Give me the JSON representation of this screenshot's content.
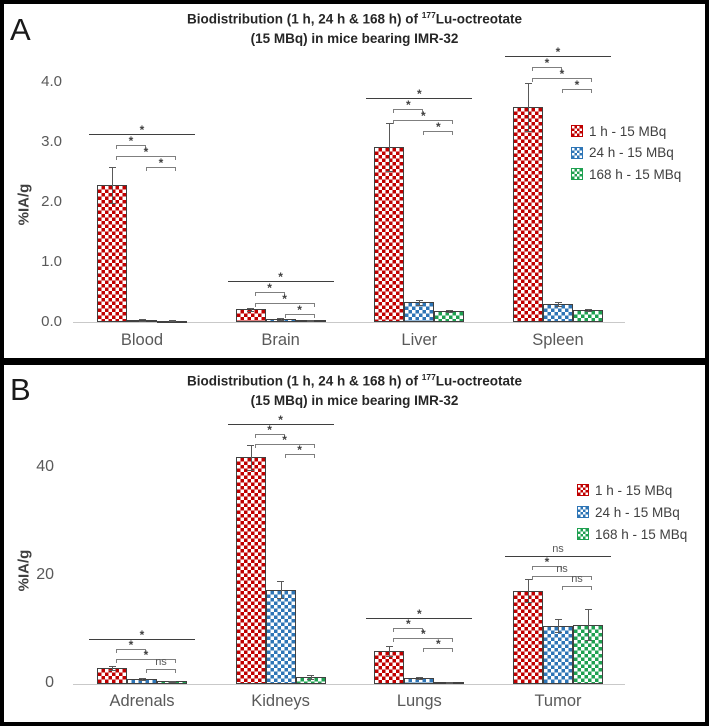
{
  "figure": {
    "panel_labels": [
      "A",
      "B"
    ],
    "series_colors": {
      "red": "#C00000",
      "blue": "#2E75B6",
      "green": "#1EA050"
    }
  },
  "chart_data": [
    {
      "type": "bar",
      "panel_label": "A",
      "title": "Biodistribution (1 h, 24 h & 168 h) of 177Lu-octreotate (15 MBq) in mice bearing IMR-32",
      "title_parts": {
        "pre": "Biodistribution (1 h, 24 h & 168 h) of ",
        "sup": "177",
        "post": "Lu-octreotate",
        "line2": "(15 MBq) in mice bearing IMR-32"
      },
      "xlabel": "",
      "ylabel": "%IA/g",
      "ylim": [
        0,
        4.5
      ],
      "grid": false,
      "legend_position": "right",
      "yticks": [
        {
          "value": 0.0,
          "label": "0.0"
        },
        {
          "value": 1.0,
          "label": "1.0"
        },
        {
          "value": 2.0,
          "label": "2.0"
        },
        {
          "value": 3.0,
          "label": "3.0"
        },
        {
          "value": 4.0,
          "label": "4.0"
        }
      ],
      "categories": [
        "Blood",
        "Brain",
        "Liver",
        "Spleen"
      ],
      "series": [
        {
          "name": "1 h - 15 MBq",
          "short": "1h",
          "color": "#C00000",
          "pattern": "checker",
          "values": [
            2.28,
            0.21,
            2.92,
            3.58
          ],
          "errors": [
            0.3,
            0.03,
            0.4,
            0.4
          ]
        },
        {
          "name": "24 h - 15 MBq",
          "short": "24h",
          "color": "#2E75B6",
          "pattern": "checker",
          "values": [
            0.04,
            0.05,
            0.33,
            0.3
          ],
          "errors": [
            0.015,
            0.015,
            0.04,
            0.03
          ]
        },
        {
          "name": "168 h - 15 MBq",
          "short": "168h",
          "color": "#1EA050",
          "pattern": "checker",
          "values": [
            0.02,
            0.03,
            0.18,
            0.2
          ],
          "errors": [
            0.01,
            0.01,
            0.02,
            0.02
          ]
        }
      ],
      "legend": {
        "items": [
          "1 h - 15 MBq",
          "24 h - 15 MBq",
          "168 h - 15 MBq"
        ]
      },
      "significance": [
        {
          "category": "Blood",
          "top_value": 3.13,
          "comparisons": [
            {
              "span": "group",
              "label": "*"
            },
            {
              "span": [
                0,
                1
              ],
              "label": "*"
            },
            {
              "span": [
                0,
                2
              ],
              "label": "*"
            },
            {
              "span": [
                1,
                2
              ],
              "label": "*"
            }
          ]
        },
        {
          "category": "Brain",
          "top_value": 0.68,
          "comparisons": [
            {
              "span": "group",
              "label": "*"
            },
            {
              "span": [
                0,
                1
              ],
              "label": "*"
            },
            {
              "span": [
                0,
                2
              ],
              "label": "*"
            },
            {
              "span": [
                1,
                2
              ],
              "label": "*"
            }
          ]
        },
        {
          "category": "Liver",
          "top_value": 3.73,
          "comparisons": [
            {
              "span": "group",
              "label": "*"
            },
            {
              "span": [
                0,
                1
              ],
              "label": "*"
            },
            {
              "span": [
                0,
                2
              ],
              "label": "*"
            },
            {
              "span": [
                1,
                2
              ],
              "label": "*"
            }
          ]
        },
        {
          "category": "Spleen",
          "top_value": 4.43,
          "comparisons": [
            {
              "span": "group",
              "label": "*"
            },
            {
              "span": [
                0,
                1
              ],
              "label": "*"
            },
            {
              "span": [
                0,
                2
              ],
              "label": "*"
            },
            {
              "span": [
                1,
                2
              ],
              "label": "*"
            }
          ]
        }
      ]
    },
    {
      "type": "bar",
      "panel_label": "B",
      "title": "Biodistribution (1 h, 24 h & 168 h) of 177Lu-octreotate (15 MBq) in mice bearing IMR-32",
      "title_parts": {
        "pre": "Biodistribution (1 h, 24 h & 168 h) of ",
        "sup": "177",
        "post": "Lu-octreotate",
        "line2": "(15 MBq) in mice bearing IMR-32"
      },
      "xlabel": "",
      "ylabel": "%IA/g",
      "ylim": [
        0,
        52
      ],
      "grid": false,
      "legend_position": "right",
      "yticks": [
        {
          "value": 0,
          "label": "0"
        },
        {
          "value": 20,
          "label": "20"
        },
        {
          "value": 40,
          "label": "40"
        }
      ],
      "categories": [
        "Adrenals",
        "Kidneys",
        "Lungs",
        "Tumor"
      ],
      "series": [
        {
          "name": "1 h - 15 MBq",
          "short": "1h",
          "color": "#C00000",
          "pattern": "checker",
          "values": [
            3.0,
            42.0,
            6.1,
            17.3
          ],
          "errors": [
            0.4,
            2.3,
            0.9,
            2.2
          ]
        },
        {
          "name": "24 h - 15 MBq",
          "short": "24h",
          "color": "#2E75B6",
          "pattern": "checker",
          "values": [
            0.9,
            17.5,
            1.1,
            10.8
          ],
          "errors": [
            0.15,
            1.5,
            0.25,
            1.2
          ]
        },
        {
          "name": "168 h - 15 MBq",
          "short": "168h",
          "color": "#1EA050",
          "pattern": "checker",
          "values": [
            0.5,
            1.3,
            0.35,
            11.0
          ],
          "errors": [
            0.1,
            0.3,
            0.1,
            2.8
          ]
        }
      ],
      "legend": {
        "items": [
          "1 h - 15 MBq",
          "24 h - 15 MBq",
          "168 h - 15 MBq"
        ]
      },
      "significance": [
        {
          "category": "Adrenals",
          "top_value": 8.3,
          "comparisons": [
            {
              "span": "group",
              "label": "*"
            },
            {
              "span": [
                0,
                1
              ],
              "label": "*"
            },
            {
              "span": [
                0,
                2
              ],
              "label": "*"
            },
            {
              "span": [
                1,
                2
              ],
              "label": "ns"
            }
          ]
        },
        {
          "category": "Kidneys",
          "top_value": 48.1,
          "comparisons": [
            {
              "span": "group",
              "label": "*"
            },
            {
              "span": [
                0,
                1
              ],
              "label": "*"
            },
            {
              "span": [
                0,
                2
              ],
              "label": "*"
            },
            {
              "span": [
                1,
                2
              ],
              "label": "*"
            }
          ]
        },
        {
          "category": "Lungs",
          "top_value": 12.2,
          "comparisons": [
            {
              "span": "group",
              "label": "*"
            },
            {
              "span": [
                0,
                1
              ],
              "label": "*"
            },
            {
              "span": [
                0,
                2
              ],
              "label": "*"
            },
            {
              "span": [
                1,
                2
              ],
              "label": "*"
            }
          ]
        },
        {
          "category": "Tumor",
          "top_value": 23.7,
          "comparisons": [
            {
              "span": "group",
              "label": "ns"
            },
            {
              "span": [
                0,
                1
              ],
              "label": "*"
            },
            {
              "span": [
                0,
                2
              ],
              "label": "ns"
            },
            {
              "span": [
                1,
                2
              ],
              "label": "ns"
            }
          ]
        }
      ]
    }
  ]
}
